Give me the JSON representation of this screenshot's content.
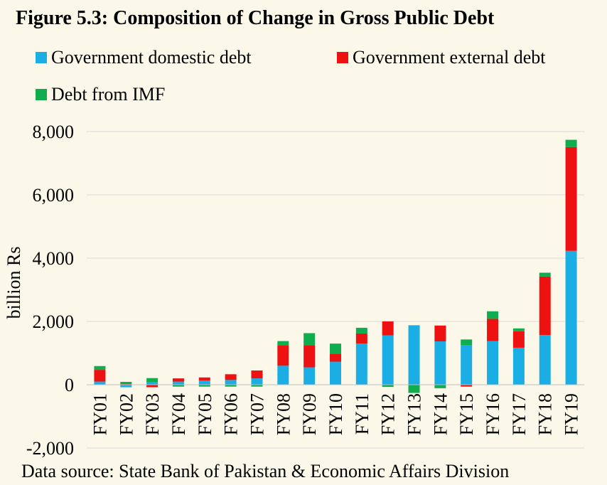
{
  "chart_data": {
    "type": "bar",
    "stacked": true,
    "title": "Figure 5.3: Composition of Change in Gross Public Debt",
    "ylabel": "billion Rs",
    "xlabel": "",
    "ylim": [
      -2000,
      8000
    ],
    "yticks": [
      -2000,
      0,
      2000,
      4000,
      6000,
      8000
    ],
    "ytick_labels": [
      "-2,000",
      "0",
      "2,000",
      "4,000",
      "6,000",
      "8,000"
    ],
    "grid": true,
    "legend_position": "top",
    "categories": [
      "FY01",
      "FY02",
      "FY03",
      "FY04",
      "FY05",
      "FY06",
      "FY07",
      "FY08",
      "FY09",
      "FY10",
      "FY11",
      "FY12",
      "FY13",
      "FY14",
      "FY15",
      "FY16",
      "FY17",
      "FY18",
      "FY19"
    ],
    "series": [
      {
        "name": "Government domestic debt",
        "color": "#1aaee5",
        "values": [
          100,
          -80,
          80,
          100,
          130,
          150,
          200,
          600,
          550,
          730,
          1300,
          1560,
          1880,
          1370,
          1250,
          1380,
          1170,
          1570,
          4230
        ]
      },
      {
        "name": "Government external debt",
        "color": "#ee1111",
        "values": [
          370,
          20,
          -80,
          100,
          100,
          180,
          250,
          650,
          700,
          250,
          320,
          440,
          0,
          500,
          -60,
          700,
          520,
          1850,
          3280
        ]
      },
      {
        "name": "Debt from IMF",
        "color": "#10ad4f",
        "values": [
          120,
          70,
          130,
          -60,
          -60,
          -60,
          -60,
          130,
          380,
          320,
          180,
          -70,
          -260,
          -110,
          180,
          240,
          90,
          120,
          230
        ]
      }
    ],
    "source": "Data source: State Bank of Pakistan & Economic Affairs Division"
  }
}
